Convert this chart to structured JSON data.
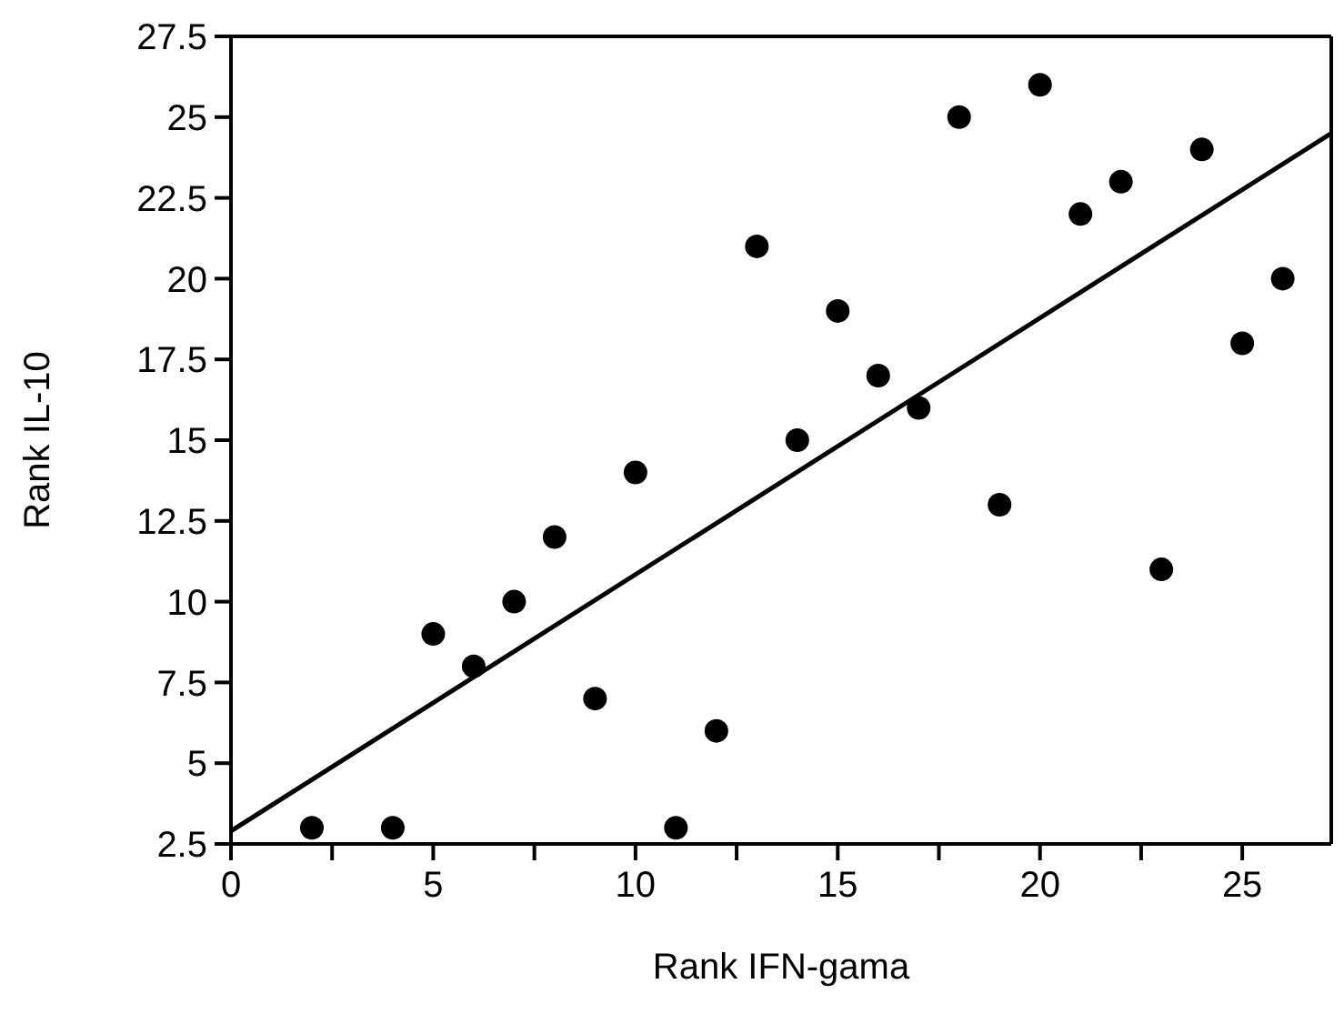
{
  "chart_data": {
    "type": "scatter",
    "xlabel": "Rank IFN-gama",
    "ylabel": "Rank IL-10",
    "x": [
      2,
      4,
      5,
      6,
      7,
      8,
      9,
      10,
      11,
      12,
      13,
      14,
      15,
      16,
      17,
      18,
      19,
      20,
      21,
      22,
      23,
      24,
      25,
      26
    ],
    "series": [
      {
        "type": "scatter",
        "color": "#000000",
        "marker": "circle",
        "values": [
          3,
          3,
          9,
          8,
          10,
          12,
          7,
          14,
          3,
          6,
          21,
          15,
          19,
          17,
          16,
          25,
          13,
          26,
          22,
          23,
          11,
          24,
          18,
          20
        ]
      },
      {
        "type": "line",
        "color": "#000000",
        "marker": "none",
        "line_style": "solid",
        "x": [
          0,
          27.2
        ],
        "values": [
          2.9,
          24.5
        ]
      }
    ],
    "xlim": [
      0,
      27.2
    ],
    "xticks": [
      0,
      {
        "value": 2.5,
        "label": null
      },
      5,
      {
        "value": 7.5,
        "label": null
      },
      10,
      {
        "value": 12.5,
        "label": null
      },
      15,
      {
        "value": 17.5,
        "label": null
      },
      20,
      {
        "value": 22.5,
        "label": null
      },
      25
    ],
    "ylim": [
      2.5,
      27.5
    ],
    "yticks": [
      2.5,
      5,
      7.5,
      10,
      12.5,
      15,
      17.5,
      20,
      22.5,
      25,
      27.5
    ],
    "grid": false,
    "legend": false
  }
}
